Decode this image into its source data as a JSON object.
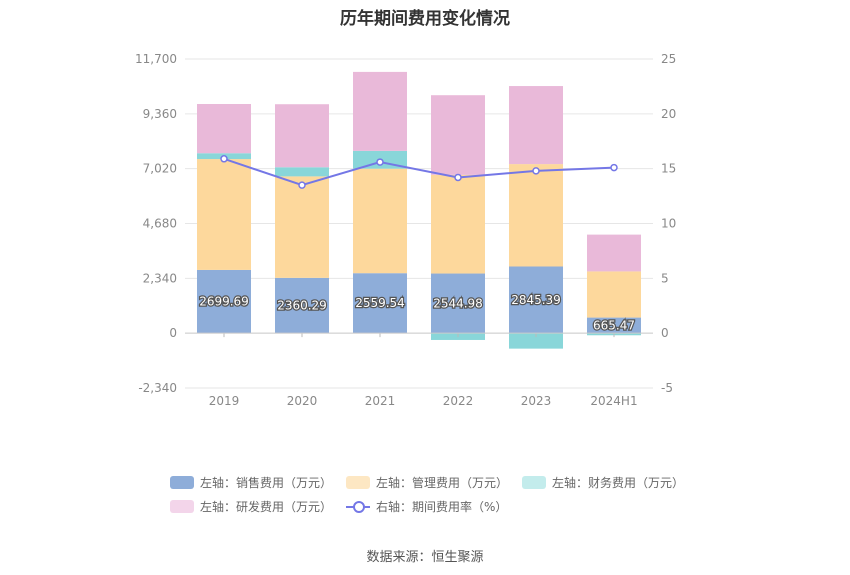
{
  "title": "历年期间费用变化情况",
  "source": "数据来源：恒生聚源",
  "chart_data": {
    "type": "bar",
    "stacked": true,
    "categories": [
      "2019",
      "2020",
      "2021",
      "2022",
      "2023",
      "2024H1"
    ],
    "y_left": {
      "ticks": [
        "-2,340",
        "0",
        "2,340",
        "4,680",
        "7,020",
        "9,360",
        "11,700"
      ],
      "lim": [
        -2340,
        11700
      ]
    },
    "y_right": {
      "ticks": [
        "-5",
        "0",
        "5",
        "10",
        "15",
        "20",
        "25"
      ],
      "lim": [
        -5,
        25
      ]
    },
    "grid": true,
    "series": [
      {
        "name": "左轴：销售费用（万元）",
        "color": "#8eadd9",
        "values": [
          2699.69,
          2360.29,
          2559.54,
          2544.98,
          2845.39,
          665.47
        ],
        "labels": [
          "2699.69",
          "2360.29",
          "2559.54",
          "2544.98",
          "2845.39",
          "665.47"
        ]
      },
      {
        "name": "左轴：管理费用（万元）",
        "color": "#fdd89c",
        "values": [
          4730,
          4330,
          4460,
          4210,
          4370,
          1970
        ]
      },
      {
        "name": "左轴：财务费用（万元）",
        "color": "#89d6d9",
        "values": [
          250,
          390,
          760,
          -290,
          -660,
          -90
        ]
      },
      {
        "name": "左轴：研发费用（万元）",
        "color": "#e9b9d9",
        "values": [
          2100,
          2690,
          3370,
          3400,
          3330,
          1570
        ]
      }
    ],
    "line_series": {
      "name": "右轴：期间费用率（%）",
      "color": "#7477e6",
      "axis": "right",
      "values": [
        15.9,
        13.5,
        15.6,
        14.2,
        14.8,
        15.1
      ]
    },
    "legend_position": "bottom"
  }
}
